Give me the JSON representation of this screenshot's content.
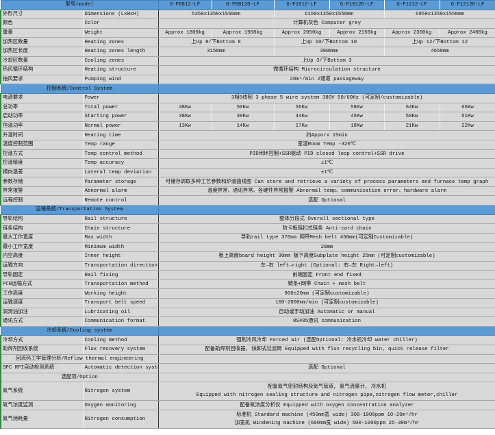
{
  "header": {
    "label": "型号/model",
    "models": [
      "G-F8812-LF",
      "G-F8812D-LF",
      "G-F1012-LF",
      "G-F1012D-LF",
      "G-F1212-LF",
      "G-F1212D-LF"
    ]
  },
  "colors": {
    "section_header": "#5b9bd5",
    "cell": "#d8d8d8",
    "row_marker": "#2e8b3a"
  },
  "sections": [
    {
      "title": "",
      "rows": [
        {
          "cn": "外形尺寸",
          "en": "Dimensions (LxWxH)",
          "values": [
            "5350x1350x1550mm",
            "6150x1350x1550mm",
            "6950x1350x1550mm"
          ]
        },
        {
          "cn": "颜色",
          "en": "Color",
          "values": [
            "计算机灰色 Computer grey"
          ]
        },
        {
          "cn": "重量",
          "en": "Weight",
          "values": [
            "Approx 1800kg",
            "Approx 1900kg",
            "Approx 2050kg",
            "Approx 2150kg",
            "Approx 2300kg",
            "Approx 2400kg"
          ]
        },
        {
          "cn": "加热区数量",
          "en": "Heating zones",
          "values": [
            "上Up 8/下Bottom 8",
            "上Up 10/下Bottom 10",
            "上Up 12/下Bottom 12"
          ]
        },
        {
          "cn": "加热区长度",
          "en": "Heating zones length",
          "values": [
            "3150mm",
            "3900mm",
            "4650mm"
          ]
        },
        {
          "cn": "冷却区数量",
          "en": "Cooling zones",
          "values": [
            "上Up 3/下Bottom 3"
          ]
        },
        {
          "cn": "热风循环结构",
          "en": "Heating structure",
          "values": [
            "微循环结构 Microcirculation structure"
          ]
        },
        {
          "cn": "抽风要求",
          "en": "Pumping wind",
          "values": [
            "20m³/min 2通道 passageway"
          ]
        }
      ]
    },
    {
      "title": "控制系统/Control System",
      "rows": [
        {
          "cn": "电源要求",
          "en": "Power",
          "values": [
            "3相5线制 3 phase 5 wire system  380V 50/60Hz (可定制/customizable)"
          ]
        },
        {
          "cn": "总功率",
          "en": "Total power",
          "values": [
            "48Kw",
            "50Kw",
            "56Kw",
            "58Kw",
            "64Kw",
            "66Kw"
          ]
        },
        {
          "cn": "启动功率",
          "en": "Starting power",
          "values": [
            "38Kw",
            "39Kw",
            "44Kw",
            "45Kw",
            "50Kw",
            "51Kw"
          ]
        },
        {
          "cn": "恒温功率",
          "en": "Normal power",
          "values": [
            "13Kw",
            "14Kw",
            "17Kw",
            "18Kw",
            "21Kw",
            "22Kw"
          ]
        },
        {
          "cn": "升温时间",
          "en": "Heating time",
          "values": [
            "约Apporx 15min"
          ]
        },
        {
          "cn": "温度控制范围",
          "en": "Temp range",
          "values": [
            "室温Room Temp -320℃"
          ]
        },
        {
          "cn": "控温方式",
          "en": "Temp control method",
          "values": [
            "PID闭环控制+SSR驱动 PID closed loop control+SSR drive"
          ]
        },
        {
          "cn": "控温精度",
          "en": "Temp accuracy",
          "values": [
            "±1℃"
          ]
        },
        {
          "cn": "横向温差",
          "en": "Lateral temp deviation",
          "values": [
            "±1℃"
          ]
        },
        {
          "cn": "参数存储",
          "en": "Parameter storage",
          "values": [
            "可储存调取多种工艺参数和炉温曲线图 Can store and retrieve a variety of process parameters and furnace temp graph"
          ]
        },
        {
          "cn": "异常报警",
          "en": "Abnormal alarm",
          "values": [
            "温度异常、通讯异常、各硬件异常报警 Abnormal temp、communication error、hardware alarm"
          ]
        },
        {
          "cn": "远程控制",
          "en": "Remote control",
          "values": [
            "选配 Optional"
          ]
        }
      ]
    },
    {
      "title": "运输系统/Transportation System",
      "rows": [
        {
          "cn": "导轨结构",
          "en": "Rail structure",
          "values": [
            "整体分段式 Overall sectional type"
          ]
        },
        {
          "cn": "链条结构",
          "en": "Chain structure",
          "values": [
            "防卡板链扣式链条 Anti-card chain"
          ]
        },
        {
          "cn": "最大工作宽度",
          "en": "Max width",
          "values": [
            "导轨rail type 370mm 网带Mesh belt 450mm(可定制Customizable)"
          ]
        },
        {
          "cn": "最小工作宽度",
          "en": "Minimum width",
          "values": [
            "20mm"
          ]
        },
        {
          "cn": "内空高度",
          "en": "Inner height",
          "values": [
            "板上高度board height 30mm 板下高度Subplate height 25mm (可定制customizable)"
          ]
        },
        {
          "cn": "运输方向",
          "en": "Transportation direction",
          "values": [
            "左→右 left→right (Optional: 右→左 Right→left)"
          ]
        },
        {
          "cn": "导轨固定",
          "en": "Rail fixing",
          "values": [
            "前端固定 Front end fixed"
          ]
        },
        {
          "cn": "PCB运输方式",
          "en": "Transportation method",
          "values": [
            "链条+网带 Chain + mesh belt"
          ]
        },
        {
          "cn": "工作高度",
          "en": "Working height",
          "values": [
            "900±20mm (可定制customizable)"
          ]
        },
        {
          "cn": "运输速度",
          "en": "Transport belt speed",
          "values": [
            "100-2000mm/min (可定制customizable)"
          ]
        },
        {
          "cn": "润滑油加注",
          "en": "Lubricating oil",
          "values": [
            "自动或手动加油 Automatic or manual"
          ]
        },
        {
          "cn": "通讯方式",
          "en": "Communication format",
          "values": [
            "RS485通讯 communication"
          ]
        }
      ]
    },
    {
      "title": "冷却系统/Cooling system",
      "rows": [
        {
          "cn": "冷却方式",
          "en": "Cooling method",
          "values": [
            "强制冷风冷却 Forced air (选配Optional: 冷水机冷却 water chiller)"
          ]
        },
        {
          "cn": "助焊剂回收系统",
          "en": "Flux recovery system",
          "values": [
            "配备助焊剂回收器, 快卸式过滤网 Equipped with flux recycling bin, quick release filter"
          ]
        },
        {
          "label": "回流热工学管理分析/Reflow thermal engineering",
          "values": [
            ""
          ]
        },
        {
          "cn": "SPC RPI自动检测系统",
          "en": "Automatic detection system",
          "values": [
            "选配 Optional"
          ]
        },
        {
          "label": "选配项/Option",
          "values": [
            ""
          ]
        },
        {
          "cn": "氮气系统",
          "en": "Nitrogen system",
          "double": true,
          "values": [
            "配备氮气密封结构及氮气管道, 氮气流量计, 冷水机\nEquipped with nitrogen sealing structure and nitrogen pipe,nitrogen flow meter,chiller"
          ]
        },
        {
          "cn": "氧气浓度监测",
          "en": "Oxygen monitoring",
          "values": [
            "配备氧浓度分析仪 Equipped with oxygen concentration analyzer"
          ]
        },
        {
          "cn": "氮气消耗量",
          "en": "Nitrogen consumption",
          "double": true,
          "values": [
            "标准机 Standard machine (450mm宽 wide) 300-1000ppm 10-20m³/hr\n加宽机 Windening machine (600mm宽 wide) 500-1000ppm 25-30m³/hr"
          ]
        }
      ]
    }
  ]
}
